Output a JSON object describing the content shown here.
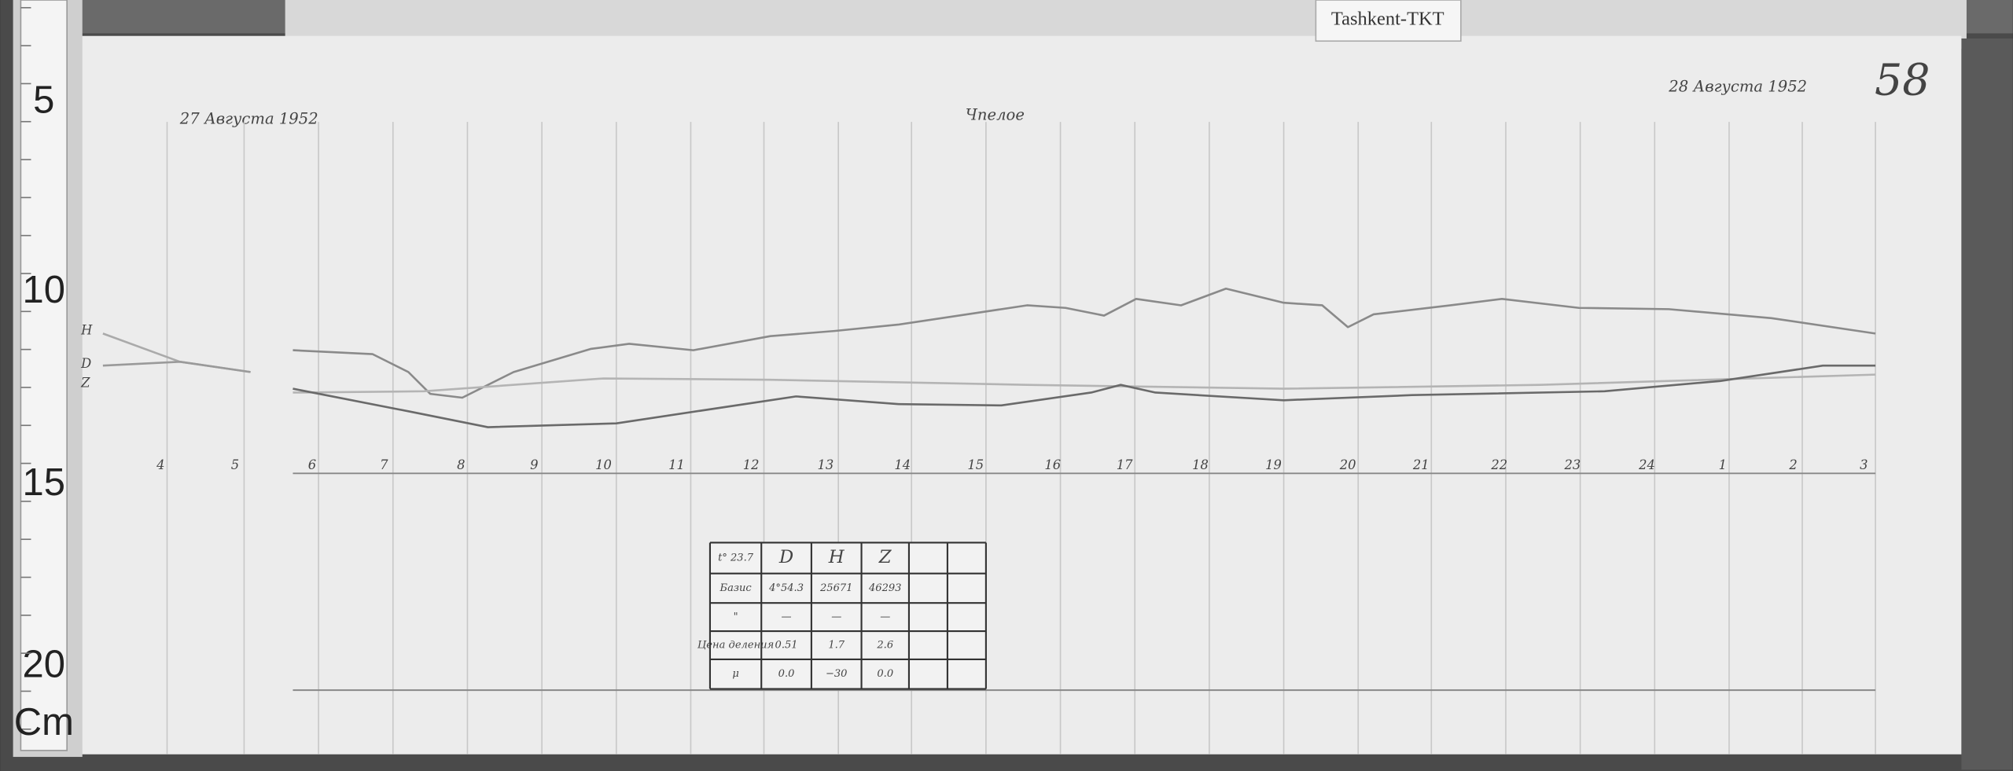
{
  "ruler": {
    "labels": [
      "5",
      "10",
      "15",
      "20"
    ],
    "unit": "Cm"
  },
  "tag": "Tashkent-TKT",
  "sheet_number": "58",
  "date_left": "27 Августа 1952",
  "date_right": "28 Августа 1952",
  "note": "Чпелое",
  "trace_labels": [
    "H",
    "D",
    "Z"
  ],
  "hours": [
    "4",
    "5",
    "6",
    "7",
    "8",
    "9",
    "10",
    "11",
    "12",
    "13",
    "14",
    "15",
    "16",
    "17",
    "18",
    "19",
    "20",
    "21",
    "22",
    "23",
    "24",
    "1",
    "2",
    "3"
  ],
  "table": {
    "rows": [
      [
        "t° 23.7",
        "D",
        "H",
        "Z"
      ],
      [
        "Базис",
        "4°54.3",
        "25671",
        "46293"
      ],
      [
        "\"",
        "—",
        "—",
        "—"
      ],
      [
        "Цена деления",
        "0.51",
        "1.7",
        "2.6"
      ],
      [
        "μ",
        "0.0",
        "−30",
        "0.0"
      ]
    ]
  }
}
